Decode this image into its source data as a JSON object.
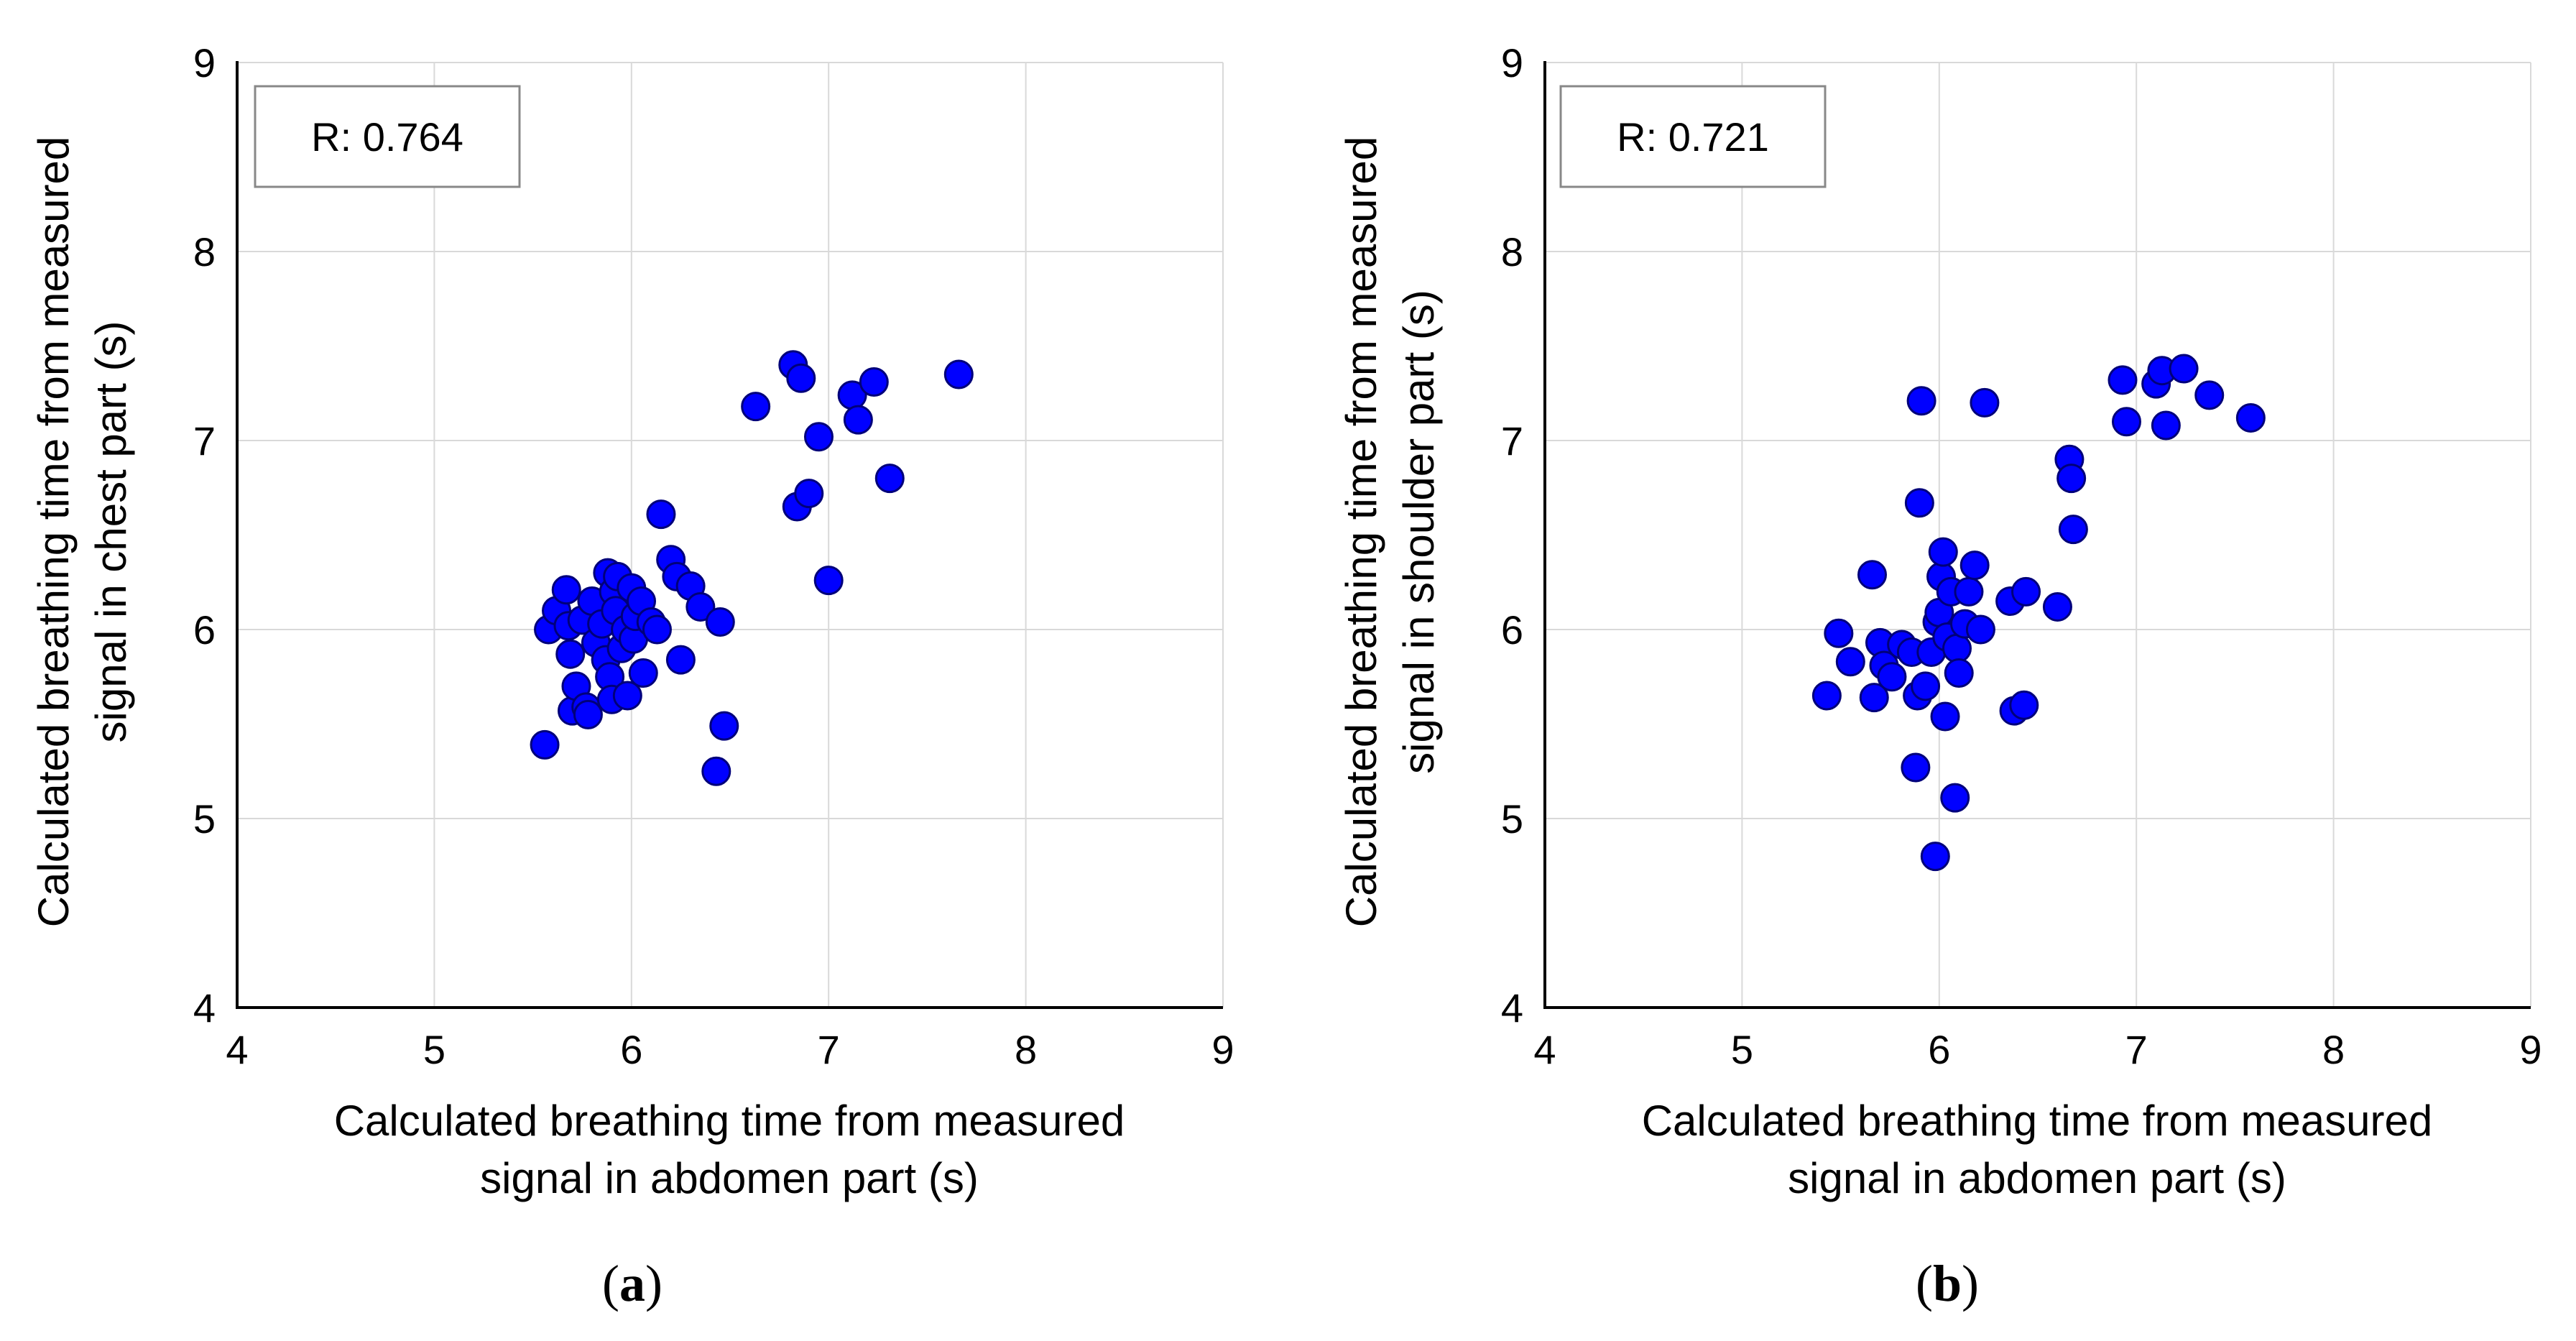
{
  "chart_data": [
    {
      "type": "scatter",
      "panel_label": "a",
      "annotation": "R: 0.764",
      "xlabel_line1": "Calculated breathing time from measured",
      "xlabel_line2": "signal in abdomen part (s)",
      "ylabel_line1": "Calculated breathing time from measured",
      "ylabel_line2": "signal in chest part (s)",
      "xlim": [
        4,
        9
      ],
      "ylim": [
        4,
        9
      ],
      "xticks": [
        "4",
        "5",
        "6",
        "7",
        "8",
        "9"
      ],
      "yticks": [
        "4",
        "5",
        "6",
        "7",
        "8",
        "9"
      ],
      "grid": true,
      "marker_color": "#0000ff",
      "points": [
        [
          5.56,
          5.39
        ],
        [
          5.58,
          6.0
        ],
        [
          5.62,
          6.1
        ],
        [
          5.67,
          6.21
        ],
        [
          5.68,
          6.02
        ],
        [
          5.69,
          5.87
        ],
        [
          5.7,
          5.57
        ],
        [
          5.72,
          5.7
        ],
        [
          5.75,
          6.05
        ],
        [
          5.77,
          5.59
        ],
        [
          5.78,
          5.55
        ],
        [
          5.8,
          6.15
        ],
        [
          5.82,
          5.93
        ],
        [
          5.85,
          6.03
        ],
        [
          5.87,
          5.84
        ],
        [
          5.88,
          6.3
        ],
        [
          5.89,
          5.75
        ],
        [
          5.9,
          5.63
        ],
        [
          5.91,
          6.2
        ],
        [
          5.92,
          6.1
        ],
        [
          5.93,
          6.28
        ],
        [
          5.95,
          5.9
        ],
        [
          5.97,
          6.0
        ],
        [
          5.98,
          5.65
        ],
        [
          6.0,
          6.22
        ],
        [
          6.01,
          5.95
        ],
        [
          6.02,
          6.07
        ],
        [
          6.05,
          6.15
        ],
        [
          6.06,
          5.77
        ],
        [
          6.1,
          6.04
        ],
        [
          6.13,
          6.0
        ],
        [
          6.15,
          6.61
        ],
        [
          6.2,
          6.37
        ],
        [
          6.23,
          6.28
        ],
        [
          6.25,
          5.84
        ],
        [
          6.3,
          6.23
        ],
        [
          6.35,
          6.12
        ],
        [
          6.43,
          5.25
        ],
        [
          6.45,
          6.04
        ],
        [
          6.47,
          5.49
        ],
        [
          6.63,
          7.18
        ],
        [
          6.82,
          7.4
        ],
        [
          6.84,
          6.65
        ],
        [
          6.86,
          7.33
        ],
        [
          6.9,
          6.72
        ],
        [
          6.95,
          7.02
        ],
        [
          7.0,
          6.26
        ],
        [
          7.12,
          7.24
        ],
        [
          7.15,
          7.11
        ],
        [
          7.23,
          7.31
        ],
        [
          7.31,
          6.8
        ],
        [
          7.66,
          7.35
        ]
      ]
    },
    {
      "type": "scatter",
      "panel_label": "b",
      "annotation": "R: 0.721",
      "xlabel_line1": "Calculated breathing time from measured",
      "xlabel_line2": "signal in abdomen part (s)",
      "ylabel_line1": "Calculated breathing time from measured",
      "ylabel_line2": "signal in shoulder part (s)",
      "xlim": [
        4,
        9
      ],
      "ylim": [
        4,
        9
      ],
      "xticks": [
        "4",
        "5",
        "6",
        "7",
        "8",
        "9"
      ],
      "yticks": [
        "4",
        "5",
        "6",
        "7",
        "8",
        "9"
      ],
      "grid": true,
      "marker_color": "#0000ff",
      "points": [
        [
          5.43,
          5.65
        ],
        [
          5.49,
          5.98
        ],
        [
          5.55,
          5.83
        ],
        [
          5.66,
          6.29
        ],
        [
          5.67,
          5.64
        ],
        [
          5.7,
          5.93
        ],
        [
          5.72,
          5.81
        ],
        [
          5.76,
          5.75
        ],
        [
          5.81,
          5.92
        ],
        [
          5.86,
          5.88
        ],
        [
          5.88,
          5.27
        ],
        [
          5.89,
          5.65
        ],
        [
          5.9,
          6.67
        ],
        [
          5.91,
          7.21
        ],
        [
          5.93,
          5.7
        ],
        [
          5.96,
          5.88
        ],
        [
          5.98,
          4.8
        ],
        [
          5.99,
          6.04
        ],
        [
          6.0,
          6.09
        ],
        [
          6.01,
          6.28
        ],
        [
          6.02,
          6.41
        ],
        [
          6.03,
          5.54
        ],
        [
          6.04,
          5.96
        ],
        [
          6.06,
          6.2
        ],
        [
          6.08,
          5.11
        ],
        [
          6.09,
          5.9
        ],
        [
          6.1,
          5.77
        ],
        [
          6.13,
          6.03
        ],
        [
          6.15,
          6.2
        ],
        [
          6.18,
          6.34
        ],
        [
          6.21,
          6.0
        ],
        [
          6.23,
          7.2
        ],
        [
          6.36,
          6.15
        ],
        [
          6.38,
          5.57
        ],
        [
          6.43,
          5.6
        ],
        [
          6.44,
          6.2
        ],
        [
          6.6,
          6.12
        ],
        [
          6.66,
          6.9
        ],
        [
          6.67,
          6.8
        ],
        [
          6.68,
          6.53
        ],
        [
          6.93,
          7.32
        ],
        [
          6.95,
          7.1
        ],
        [
          7.1,
          7.3
        ],
        [
          7.13,
          7.37
        ],
        [
          7.15,
          7.08
        ],
        [
          7.24,
          7.38
        ],
        [
          7.37,
          7.24
        ],
        [
          7.58,
          7.12
        ]
      ]
    }
  ]
}
